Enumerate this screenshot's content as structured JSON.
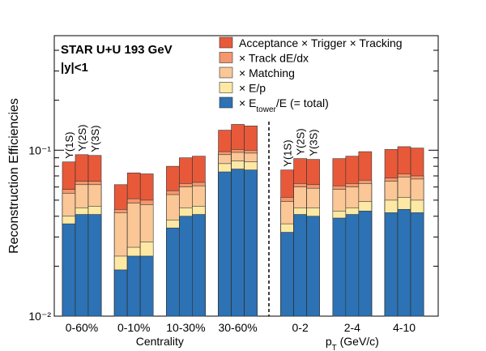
{
  "chart_data": {
    "type": "bar",
    "title": "STAR U+U 193 GeV",
    "subtitle": "|y|<1",
    "ylabel": "Reconstruction Efficiencies",
    "log_y": true,
    "ylim": [
      0.01,
      0.49
    ],
    "yticks": [
      {
        "value": 0.01,
        "label": "10⁻²"
      },
      {
        "value": 0.1,
        "label": "10⁻¹"
      }
    ],
    "yminor": [
      0.02,
      0.03,
      0.04,
      0.05,
      0.06,
      0.07,
      0.08,
      0.09,
      0.2,
      0.3,
      0.4
    ],
    "states": [
      "Υ(1S)",
      "Υ(2S)",
      "Υ(3S)"
    ],
    "groups": [
      {
        "label": "0-60%",
        "show_states": true
      },
      {
        "label": "0-10%",
        "show_states": false
      },
      {
        "label": "10-30%",
        "show_states": false
      },
      {
        "label": "30-60%",
        "show_states": false
      },
      {
        "label": "0-2",
        "show_states": true
      },
      {
        "label": "2-4",
        "show_states": false
      },
      {
        "label": "4-10",
        "show_states": false
      }
    ],
    "sections": [
      {
        "label": [
          "Centrality"
        ],
        "groups": 4
      },
      {
        "label": [
          "p",
          "T",
          " (GeV/c)"
        ],
        "groups": 3
      }
    ],
    "series": [
      {
        "name": [
          "Acceptance × Trigger × Tracking"
        ],
        "color": "#e8593a",
        "values": [
          [
            0.085,
            0.094,
            0.093
          ],
          [
            0.062,
            0.073,
            0.072
          ],
          [
            0.08,
            0.09,
            0.092
          ],
          [
            0.132,
            0.143,
            0.14
          ],
          [
            0.076,
            0.089,
            0.088
          ],
          [
            0.089,
            0.092,
            0.098
          ],
          [
            0.101,
            0.105,
            0.103
          ]
        ]
      },
      {
        "name": [
          "× Track dE/dx"
        ],
        "color": "#f4976c",
        "values": [
          [
            0.058,
            0.065,
            0.065
          ],
          [
            0.044,
            0.051,
            0.05
          ],
          [
            0.057,
            0.063,
            0.064
          ],
          [
            0.098,
            0.101,
            0.1
          ],
          [
            0.052,
            0.063,
            0.062
          ],
          [
            0.061,
            0.063,
            0.066
          ],
          [
            0.068,
            0.072,
            0.07
          ]
        ]
      },
      {
        "name": [
          "× Matching"
        ],
        "color": "#fbc797",
        "values": [
          [
            0.055,
            0.062,
            0.062
          ],
          [
            0.042,
            0.048,
            0.047
          ],
          [
            0.054,
            0.06,
            0.061
          ],
          [
            0.094,
            0.097,
            0.096
          ],
          [
            0.049,
            0.06,
            0.059
          ],
          [
            0.058,
            0.06,
            0.063
          ],
          [
            0.065,
            0.069,
            0.067
          ]
        ]
      },
      {
        "name": [
          "× E/p"
        ],
        "color": "#fde9a4",
        "values": [
          [
            0.04,
            0.045,
            0.046
          ],
          [
            0.023,
            0.026,
            0.028
          ],
          [
            0.038,
            0.045,
            0.046
          ],
          [
            0.083,
            0.086,
            0.085
          ],
          [
            0.036,
            0.045,
            0.045
          ],
          [
            0.043,
            0.045,
            0.049
          ],
          [
            0.05,
            0.052,
            0.05
          ]
        ]
      },
      {
        "name": [
          "× E",
          "tower",
          "/E (= total)"
        ],
        "color": "#2c72b4",
        "values": [
          [
            0.036,
            0.041,
            0.041
          ],
          [
            0.019,
            0.023,
            0.023
          ],
          [
            0.034,
            0.04,
            0.041
          ],
          [
            0.074,
            0.077,
            0.076
          ],
          [
            0.032,
            0.041,
            0.04
          ],
          [
            0.039,
            0.041,
            0.043
          ],
          [
            0.042,
            0.044,
            0.042
          ]
        ]
      }
    ]
  }
}
